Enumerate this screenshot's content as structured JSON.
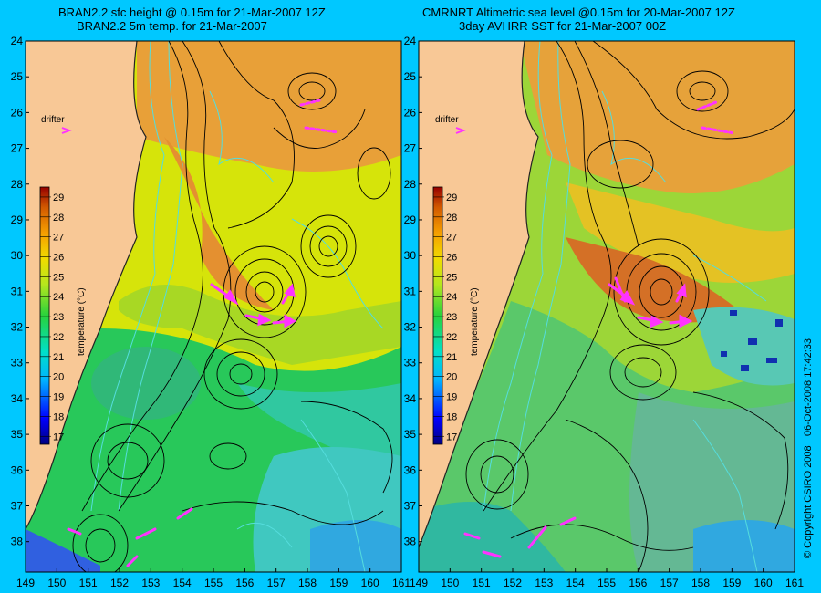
{
  "panels": [
    {
      "title_line1": "BRAN2.2 sfc height @ 0.15m for 21-Mar-2007 12Z",
      "title_line2": "BRAN2.2 5m temp. for 21-Mar-2007",
      "drifter_label": "drifter",
      "colorbar_label": "temperature (°C)"
    },
    {
      "title_line1": "CMRNRT Altimetric sea level  @0.15m  for 20-Mar-2007 12Z",
      "title_line2": "3day AVHRR SST for 21-Mar-2007 00Z",
      "drifter_label": "drifter",
      "colorbar_label": "temperature (°C)"
    }
  ],
  "credits": {
    "copyright": "© Copyright CSIRO 2008",
    "timestamp": "06-Oct-2008 17:42:33"
  },
  "axes": {
    "x_ticks": [
      149,
      150,
      151,
      152,
      153,
      154,
      155,
      156,
      157,
      158,
      159,
      160,
      161
    ],
    "y_ticks": [
      24,
      25,
      26,
      27,
      28,
      29,
      30,
      31,
      32,
      33,
      34,
      35,
      36,
      37,
      38
    ],
    "colorbar_ticks": [
      17,
      18,
      19,
      20,
      21,
      22,
      23,
      24,
      25,
      26,
      27,
      28,
      29
    ]
  },
  "colors": {
    "background": "#00c8ff",
    "land": "#f8c896",
    "drifter_arrows": "#ff33ff",
    "contours": "#000000",
    "bathymetry": "#55dddd"
  }
}
